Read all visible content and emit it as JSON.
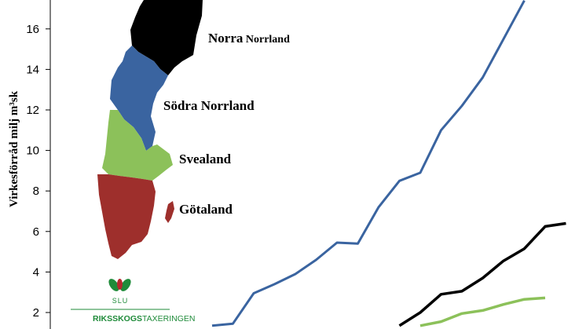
{
  "chart_data": {
    "type": "line",
    "ylabel": "Virkesförråd milj m³sk",
    "ylim": [
      1.2,
      17.4
    ],
    "yticks": [
      2,
      4,
      6,
      8,
      10,
      12,
      14,
      16
    ],
    "grid": false,
    "x_index": [
      0,
      1,
      2,
      3,
      4,
      5,
      6,
      7,
      8,
      9,
      10,
      11,
      12,
      13,
      14,
      15,
      16,
      17,
      18
    ],
    "series": [
      {
        "color": "#3a64a0",
        "values": [
          1.35,
          1.45,
          2.95,
          3.4,
          3.9,
          4.6,
          5.45,
          5.4,
          7.2,
          8.5,
          8.9,
          11.0,
          12.2,
          13.6,
          15.5,
          17.4,
          null,
          null,
          null
        ]
      },
      {
        "color": "#000000",
        "values": [
          null,
          null,
          null,
          null,
          null,
          null,
          null,
          null,
          null,
          1.35,
          2.0,
          2.9,
          3.05,
          3.7,
          4.55,
          5.15,
          6.25,
          6.4,
          null
        ]
      },
      {
        "color": "#8cc15a",
        "values": [
          null,
          null,
          null,
          null,
          null,
          null,
          null,
          null,
          null,
          null,
          1.35,
          1.55,
          1.95,
          2.1,
          2.4,
          2.65,
          2.72,
          null,
          null
        ]
      }
    ]
  },
  "map": {
    "regions": [
      {
        "name_main": "Norra",
        "name_rest": " Norrland",
        "color": "#000000"
      },
      {
        "name_main": "Södra Norrland",
        "name_rest": "",
        "color": "#3a64a0"
      },
      {
        "name_main": "Svealand",
        "name_rest": "",
        "color": "#8cc15a"
      },
      {
        "name_main": "Götaland",
        "name_rest": "",
        "color": "#9e2f2c"
      }
    ]
  },
  "logo": {
    "short": "SLU",
    "name": "RIKSSKOGS",
    "name_suffix": "TAXERINGEN",
    "color": "#1f8b3a",
    "accent": "#b5292e"
  }
}
